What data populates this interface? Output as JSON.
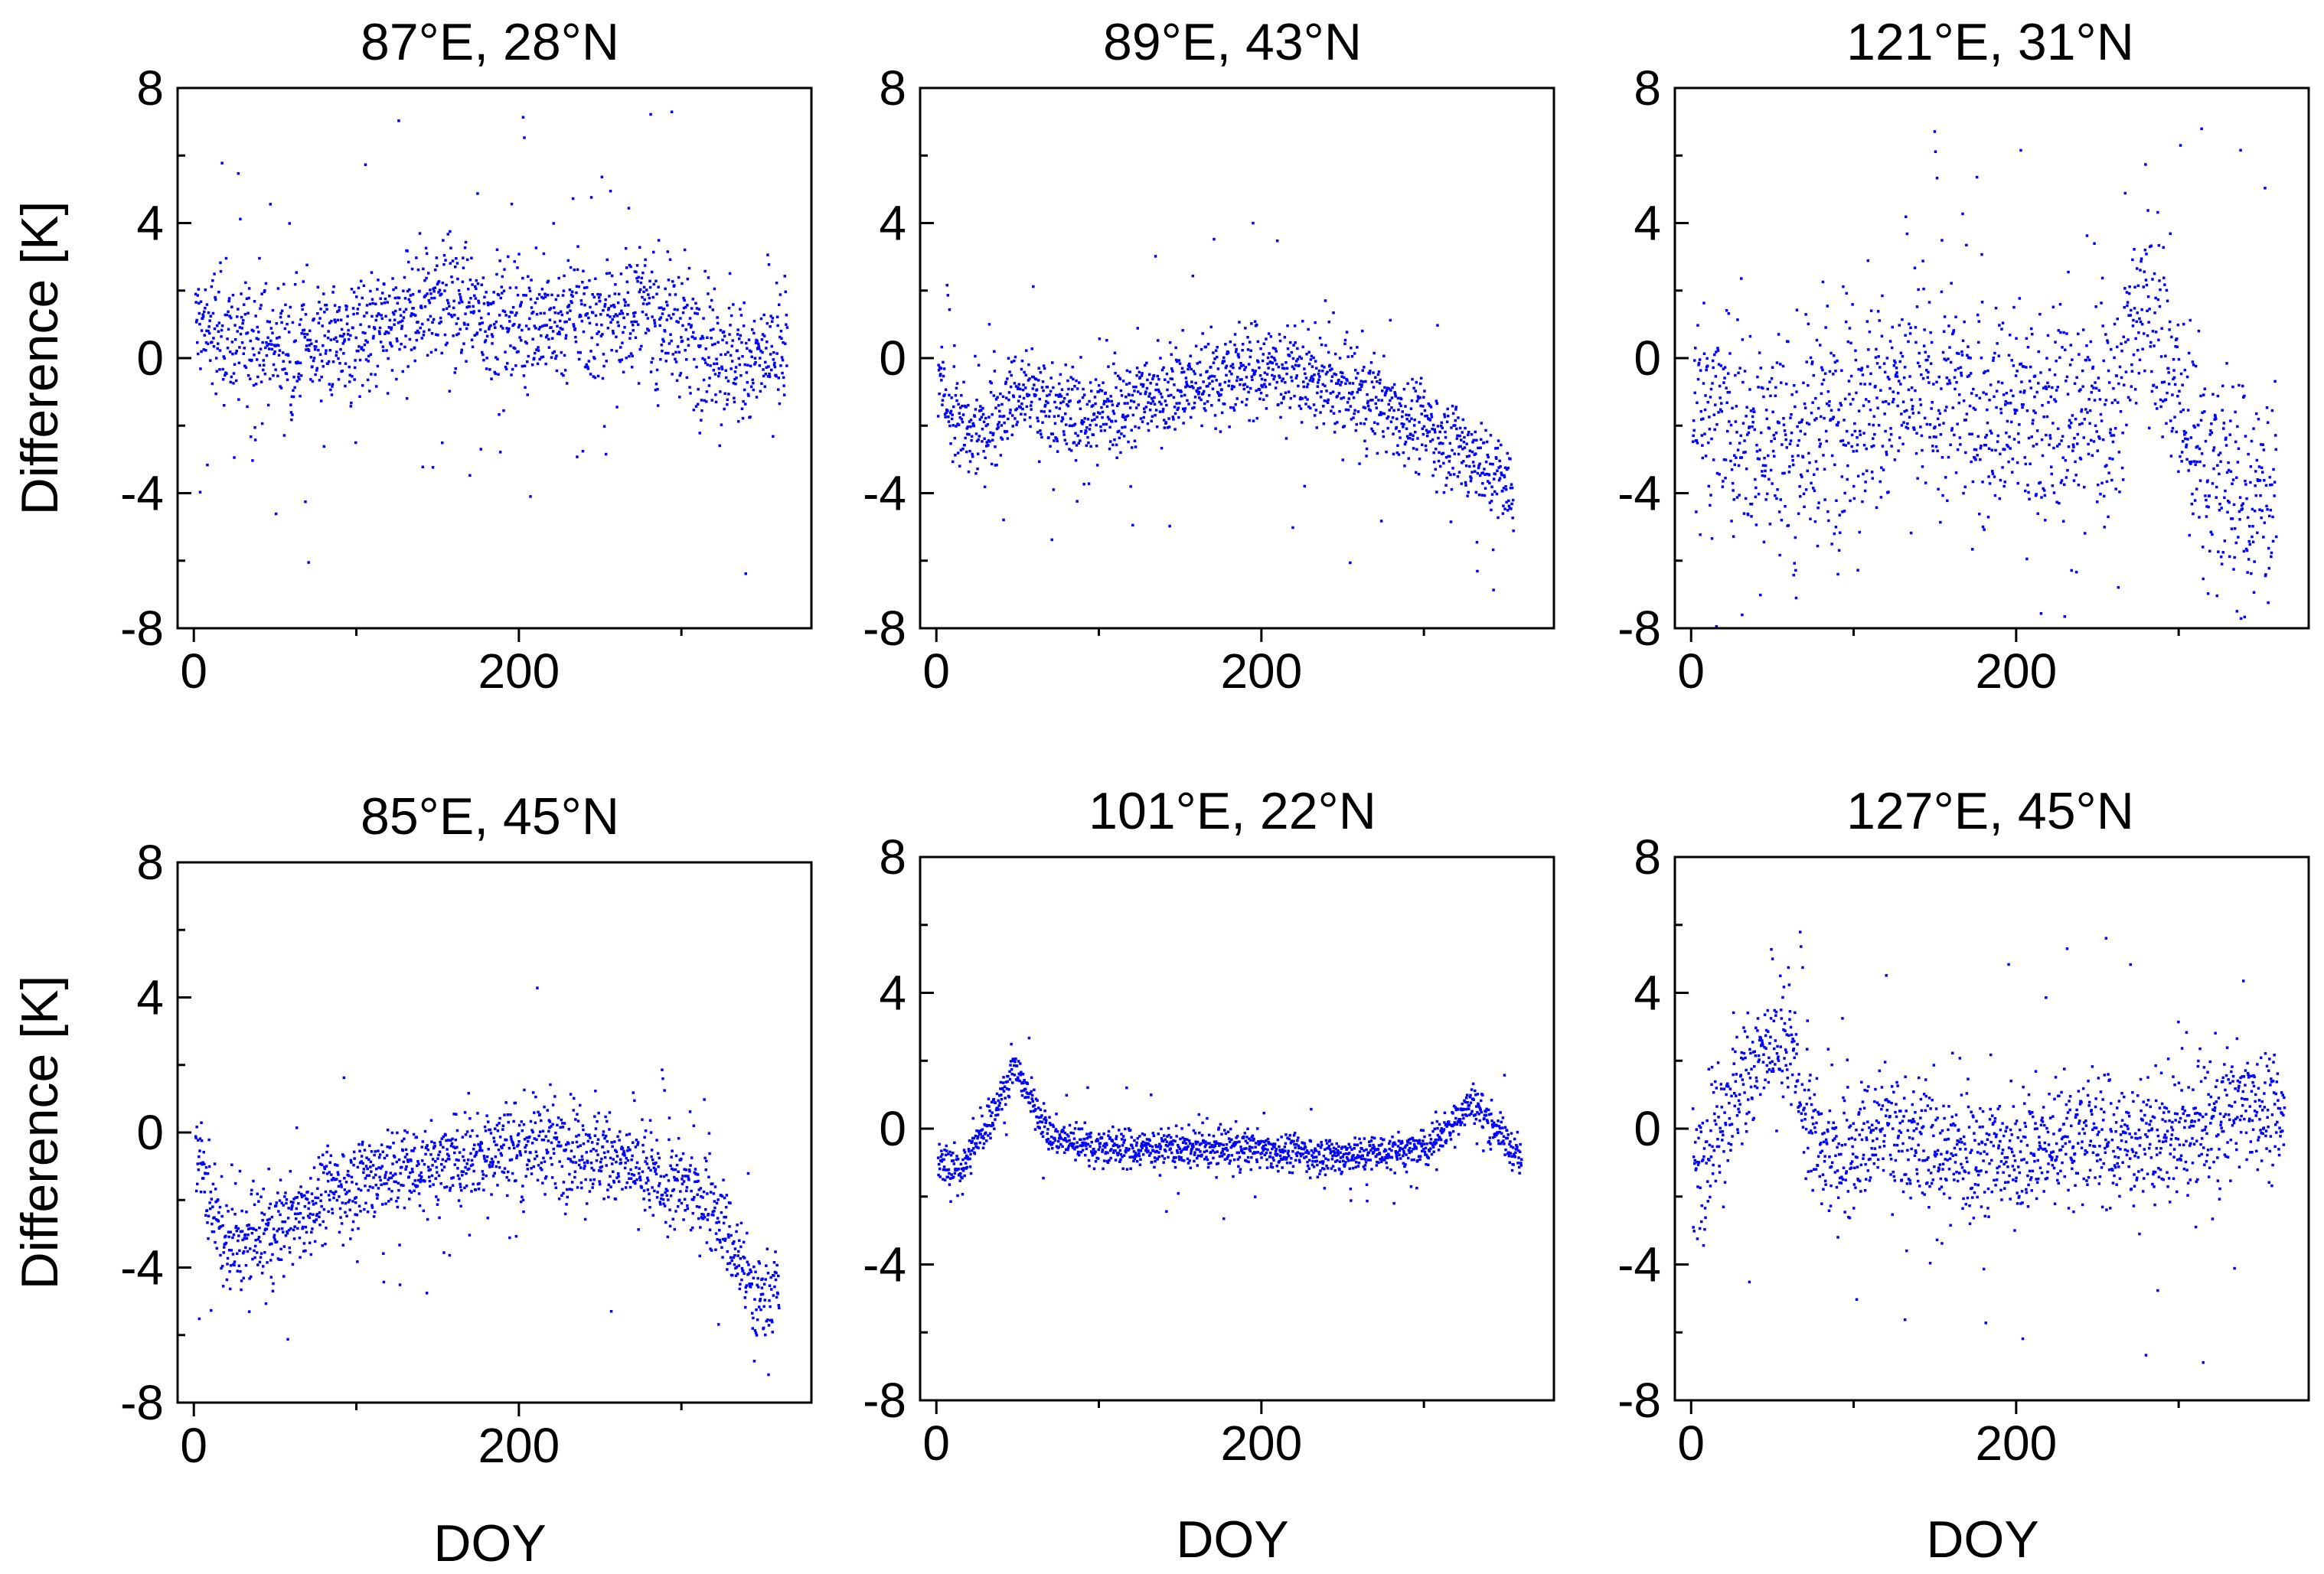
{
  "figure": {
    "shared_xlabel": "DOY",
    "shared_ylabel": "Difference [K]"
  },
  "chart_data": [
    {
      "type": "scatter",
      "title": "87°E, 28°N",
      "xlabel": "",
      "ylabel": "Difference [K]",
      "xlim": [
        -10,
        380
      ],
      "ylim": [
        -8,
        8
      ],
      "xticks": [
        "0",
        "200"
      ],
      "yticks": [
        "-8",
        "-4",
        "0",
        "4",
        "8"
      ],
      "color": "#0000ff",
      "series": [
        {
          "name": "difference",
          "x_range": [
            1,
            365
          ],
          "trend_days": [
            0,
            30,
            60,
            90,
            120,
            150,
            180,
            210,
            250,
            280,
            310,
            340,
            365
          ],
          "trend_values": [
            1.0,
            0.5,
            0.3,
            0.5,
            0.8,
            1.8,
            1.2,
            1.0,
            1.2,
            1.5,
            0.5,
            -0.2,
            0.2
          ],
          "spread": 1.5
        }
      ]
    },
    {
      "type": "scatter",
      "title": "89°E, 43°N",
      "xlabel": "",
      "ylabel": "",
      "xlim": [
        -10,
        380
      ],
      "ylim": [
        -8,
        8
      ],
      "xticks": [
        "0",
        "200"
      ],
      "yticks": [
        "-8",
        "-4",
        "0",
        "4",
        "8"
      ],
      "color": "#0000ff",
      "series": [
        {
          "name": "difference",
          "x_range": [
            1,
            355
          ],
          "trend_days": [
            0,
            20,
            50,
            90,
            130,
            170,
            200,
            240,
            280,
            320,
            355
          ],
          "trend_values": [
            -0.5,
            -2.5,
            -1.0,
            -1.8,
            -1.2,
            -0.5,
            -0.2,
            -0.8,
            -1.5,
            -2.5,
            -4.0
          ],
          "spread": 1.1
        }
      ]
    },
    {
      "type": "scatter",
      "title": "121°E, 31°N",
      "xlabel": "",
      "ylabel": "",
      "xlim": [
        -10,
        380
      ],
      "ylim": [
        -8,
        8
      ],
      "xticks": [
        "0",
        "200"
      ],
      "yticks": [
        "-8",
        "-4",
        "0",
        "4",
        "8"
      ],
      "color": "#0000ff",
      "series": [
        {
          "name": "difference",
          "x_range": [
            1,
            360
          ],
          "trend_days": [
            0,
            30,
            60,
            100,
            140,
            180,
            220,
            260,
            280,
            310,
            340,
            360
          ],
          "trend_values": [
            -1.5,
            -2.0,
            -2.5,
            -1.5,
            -1.0,
            -1.5,
            -1.8,
            -1.5,
            2.0,
            -2.5,
            -4.0,
            -4.0
          ],
          "spread": 2.6
        }
      ]
    },
    {
      "type": "scatter",
      "title": "85°E, 45°N",
      "xlabel": "DOY",
      "ylabel": "Difference [K]",
      "xlim": [
        -10,
        380
      ],
      "ylim": [
        -8,
        8
      ],
      "xticks": [
        "0",
        "200"
      ],
      "yticks": [
        "-8",
        "-4",
        "0",
        "4",
        "8"
      ],
      "color": "#0000ff",
      "series": [
        {
          "name": "difference",
          "x_range": [
            1,
            360
          ],
          "trend_days": [
            0,
            20,
            50,
            80,
            110,
            150,
            180,
            210,
            250,
            290,
            320,
            345,
            360
          ],
          "trend_values": [
            -0.5,
            -3.5,
            -3.0,
            -1.8,
            -1.2,
            -1.0,
            -0.5,
            -0.3,
            -0.6,
            -1.5,
            -2.0,
            -5.0,
            -4.5
          ],
          "spread": 1.1
        }
      ]
    },
    {
      "type": "scatter",
      "title": "101°E, 22°N",
      "xlabel": "DOY",
      "ylabel": "",
      "xlim": [
        -10,
        380
      ],
      "ylim": [
        -8,
        8
      ],
      "xticks": [
        "0",
        "200"
      ],
      "yticks": [
        "-8",
        "-4",
        "0",
        "4",
        "8"
      ],
      "color": "#0000ff",
      "series": [
        {
          "name": "difference",
          "x_range": [
            1,
            360
          ],
          "trend_days": [
            0,
            15,
            30,
            48,
            70,
            100,
            150,
            200,
            250,
            300,
            330,
            345,
            360
          ],
          "trend_values": [
            -1.0,
            -1.2,
            0.0,
            1.8,
            -0.2,
            -0.5,
            -0.6,
            -0.6,
            -0.8,
            -0.6,
            0.8,
            0.0,
            -1.0
          ],
          "spread": 0.45
        }
      ]
    },
    {
      "type": "scatter",
      "title": "127°E, 45°N",
      "xlabel": "DOY",
      "ylabel": "",
      "xlim": [
        -10,
        380
      ],
      "ylim": [
        -8,
        8
      ],
      "xticks": [
        "0",
        "200"
      ],
      "yticks": [
        "-8",
        "-4",
        "0",
        "4",
        "8"
      ],
      "color": "#0000ff",
      "series": [
        {
          "name": "difference",
          "x_range": [
            1,
            365
          ],
          "trend_days": [
            0,
            20,
            40,
            60,
            80,
            120,
            160,
            200,
            240,
            280,
            320,
            345,
            365
          ],
          "trend_values": [
            -1.5,
            0.5,
            2.0,
            2.5,
            -1.0,
            0.0,
            -0.8,
            -0.8,
            0.0,
            -0.5,
            0.0,
            1.0,
            0.0
          ],
          "spread": 1.5
        }
      ]
    }
  ]
}
